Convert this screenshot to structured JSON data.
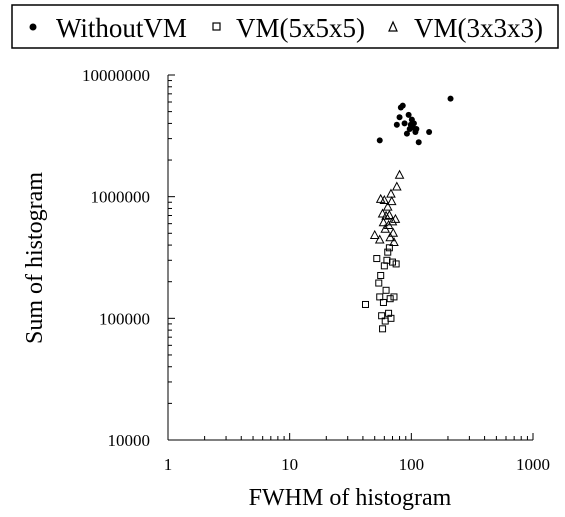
{
  "chart_data": {
    "type": "scatter",
    "title": "",
    "xlabel": "FWHM of histogram",
    "ylabel": "Sum of histogram",
    "xscale": "log",
    "yscale": "log",
    "xlim": [
      1,
      1000
    ],
    "ylim": [
      10000,
      10000000
    ],
    "x_ticks": [
      "1",
      "10",
      "100",
      "1000"
    ],
    "y_ticks": [
      "10000",
      "100000",
      "1000000",
      "10000000"
    ],
    "grid": false,
    "legend_position": "top",
    "series": [
      {
        "name": "WithoutVM",
        "marker": "filled-circle",
        "color": "#000000",
        "points": [
          [
            55,
            2900000
          ],
          [
            76,
            3900000
          ],
          [
            80,
            4500000
          ],
          [
            82,
            5400000
          ],
          [
            85,
            5600000
          ],
          [
            88,
            4000000
          ],
          [
            92,
            3300000
          ],
          [
            95,
            4700000
          ],
          [
            97,
            3600000
          ],
          [
            99,
            3900000
          ],
          [
            101,
            4300000
          ],
          [
            103,
            3700000
          ],
          [
            105,
            4000000
          ],
          [
            108,
            3400000
          ],
          [
            110,
            3600000
          ],
          [
            115,
            2800000
          ],
          [
            140,
            3400000
          ],
          [
            210,
            6400000
          ]
        ]
      },
      {
        "name": "VM(5x5x5)",
        "marker": "open-square",
        "color": "#000000",
        "points": [
          [
            42,
            130000
          ],
          [
            52,
            310000
          ],
          [
            54,
            195000
          ],
          [
            55,
            150000
          ],
          [
            56,
            225000
          ],
          [
            57,
            105000
          ],
          [
            58,
            82000
          ],
          [
            59,
            135000
          ],
          [
            60,
            270000
          ],
          [
            61,
            95000
          ],
          [
            62,
            170000
          ],
          [
            63,
            300000
          ],
          [
            64,
            350000
          ],
          [
            65,
            110000
          ],
          [
            66,
            380000
          ],
          [
            67,
            145000
          ],
          [
            68,
            100000
          ],
          [
            70,
            290000
          ],
          [
            72,
            150000
          ],
          [
            75,
            280000
          ]
        ]
      },
      {
        "name": "VM(3x3x3)",
        "marker": "open-triangle",
        "color": "#000000",
        "points": [
          [
            50,
            480000
          ],
          [
            55,
            440000
          ],
          [
            56,
            950000
          ],
          [
            58,
            720000
          ],
          [
            59,
            610000
          ],
          [
            60,
            930000
          ],
          [
            61,
            540000
          ],
          [
            62,
            690000
          ],
          [
            64,
            820000
          ],
          [
            65,
            580000
          ],
          [
            66,
            700000
          ],
          [
            67,
            460000
          ],
          [
            68,
            1050000
          ],
          [
            69,
            910000
          ],
          [
            70,
            620000
          ],
          [
            71,
            500000
          ],
          [
            72,
            420000
          ],
          [
            74,
            650000
          ],
          [
            76,
            1200000
          ],
          [
            80,
            1500000
          ]
        ]
      }
    ]
  }
}
